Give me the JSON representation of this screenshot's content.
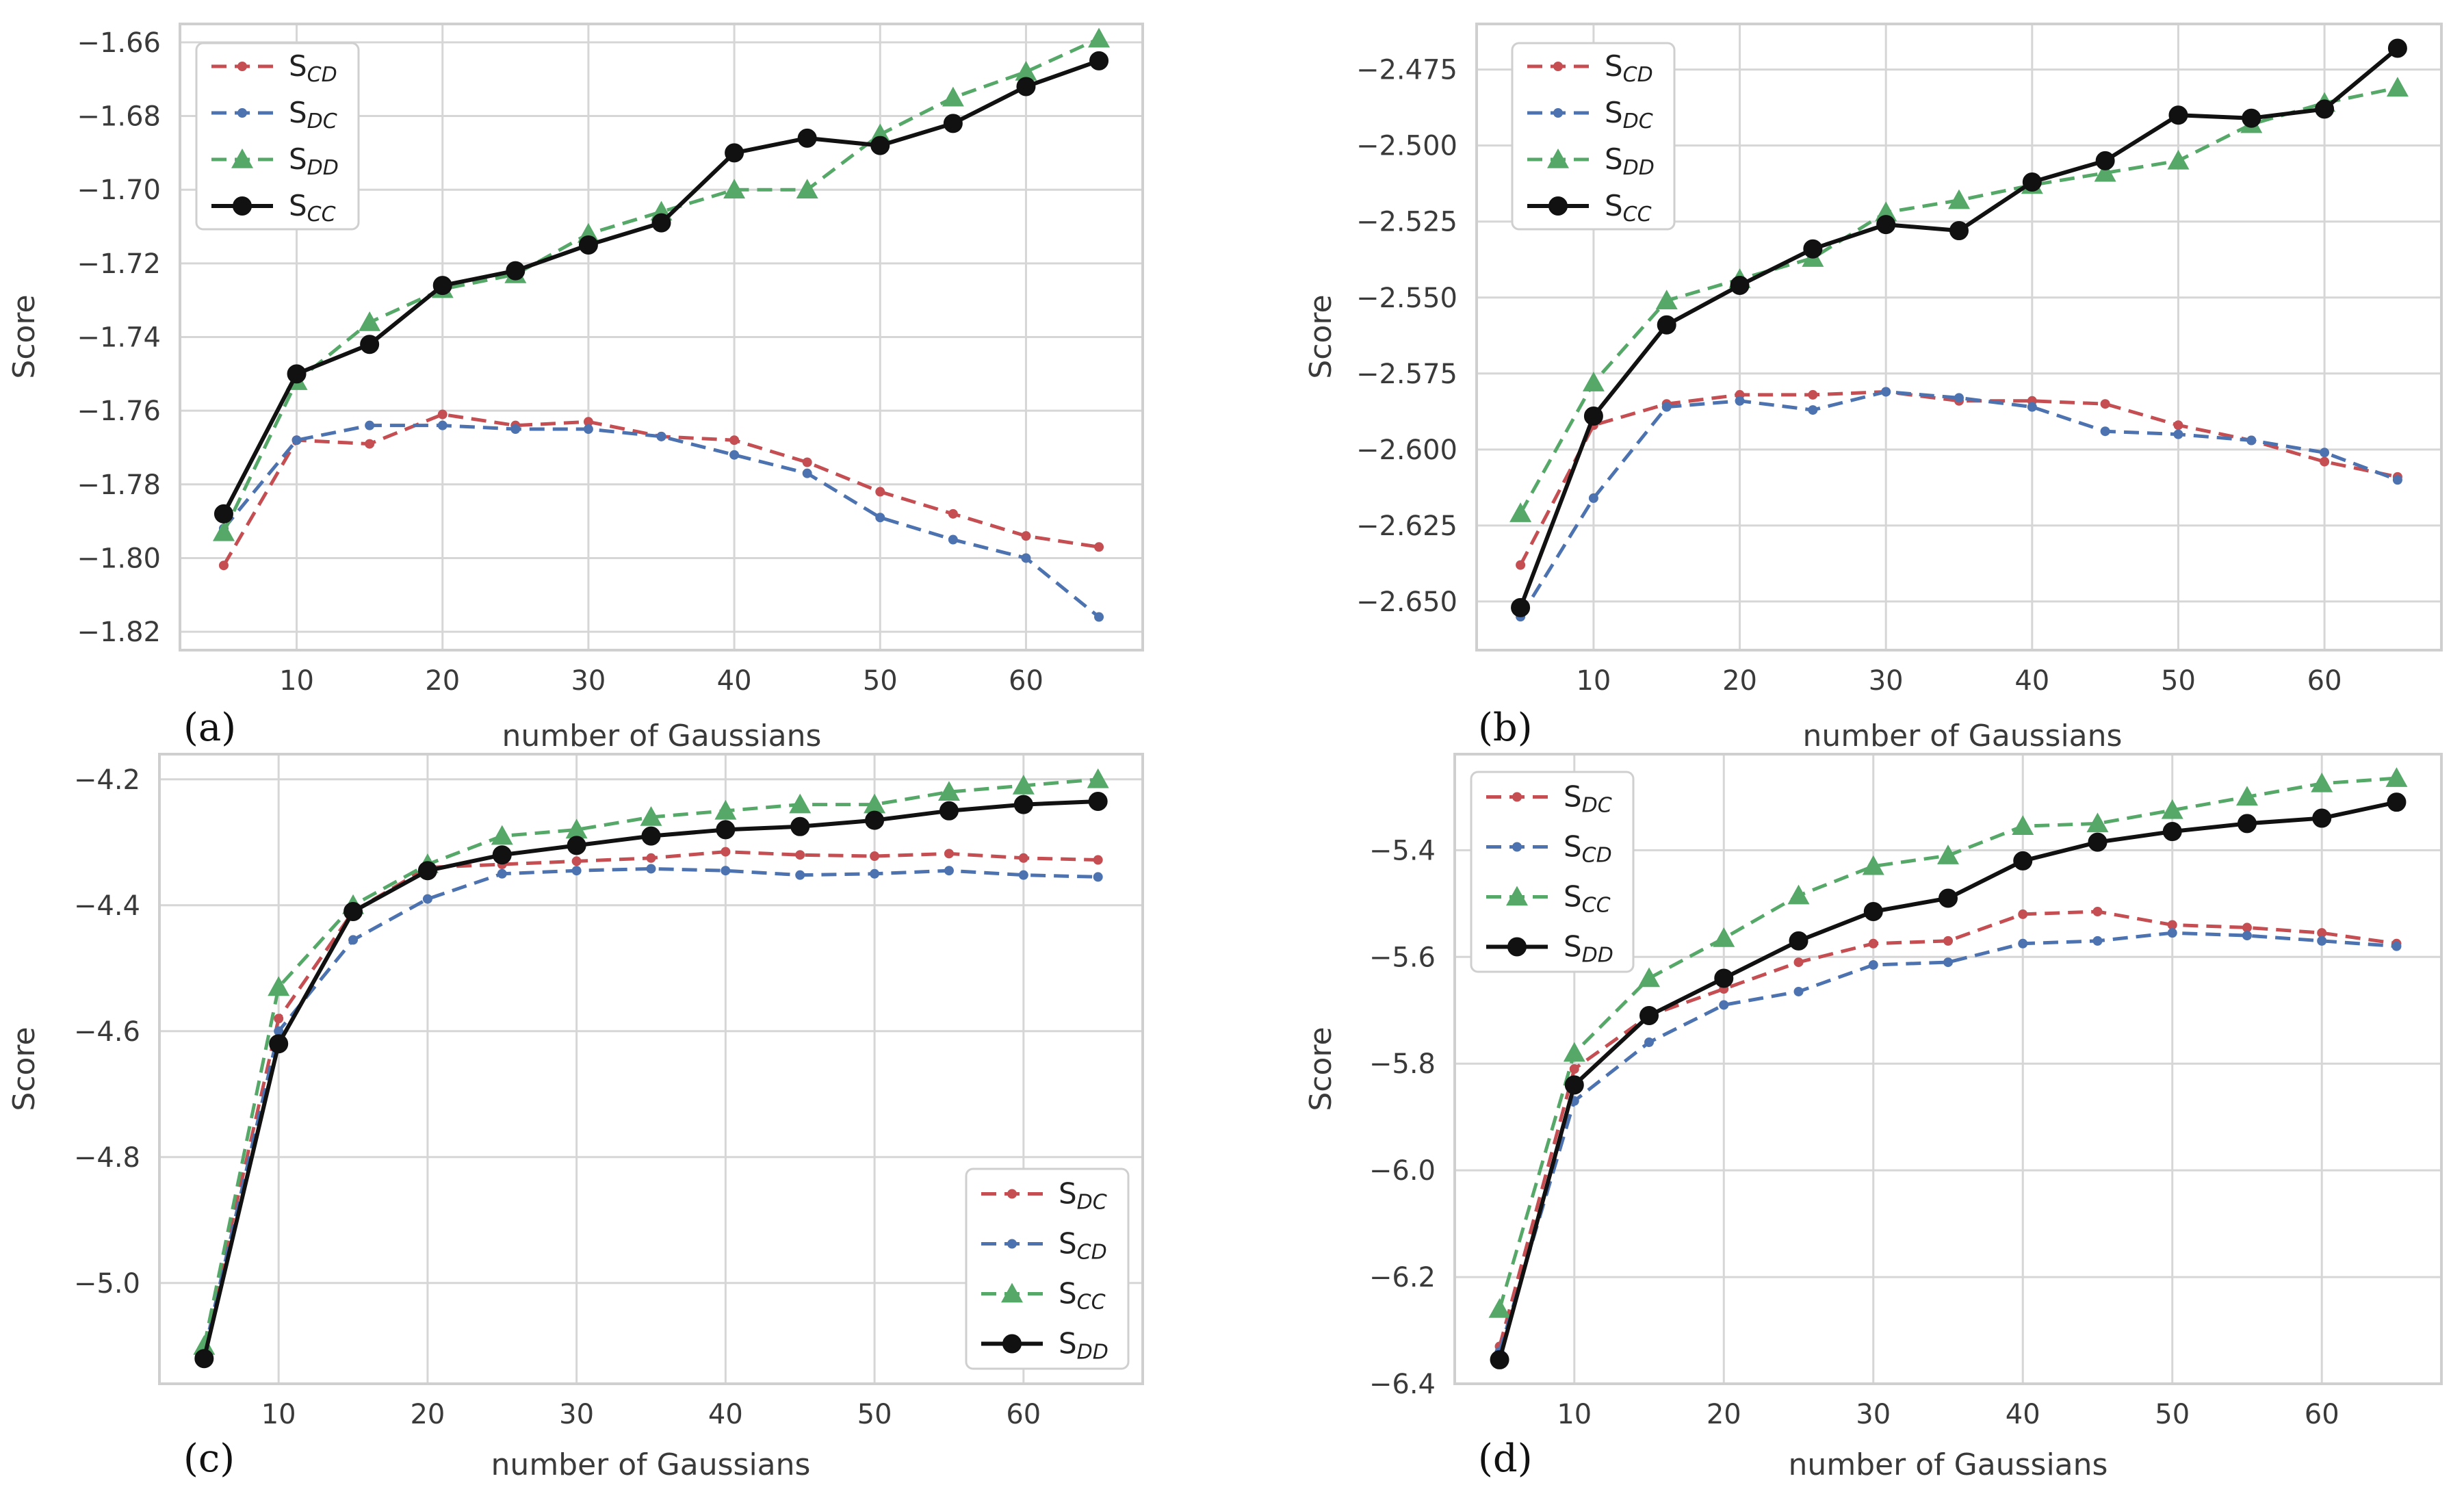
{
  "chart_data": [
    {
      "type": "line",
      "panel": "(a)",
      "xlabel": "number of Gaussians",
      "ylabel": "Score",
      "x": [
        5,
        10,
        15,
        20,
        25,
        30,
        35,
        40,
        45,
        50,
        55,
        60,
        65
      ],
      "xlim": [
        2,
        68
      ],
      "ylim": [
        -1.825,
        -1.655
      ],
      "xticks": [
        10,
        20,
        30,
        40,
        50,
        60
      ],
      "yticks": [
        -1.82,
        -1.8,
        -1.78,
        -1.76,
        -1.74,
        -1.72,
        -1.7,
        -1.68,
        -1.66
      ],
      "ytick_labels": [
        "−1.82",
        "−1.80",
        "−1.78",
        "−1.76",
        "−1.74",
        "−1.72",
        "−1.70",
        "−1.68",
        "−1.66"
      ],
      "legend_position": "top-left",
      "series": [
        {
          "base": "S",
          "sub": "CD",
          "color": "#c44e52",
          "dashed": true,
          "marker": "point",
          "values": [
            -1.802,
            -1.768,
            -1.769,
            -1.761,
            -1.764,
            -1.763,
            -1.767,
            -1.768,
            -1.774,
            -1.782,
            -1.788,
            -1.794,
            -1.797
          ]
        },
        {
          "base": "S",
          "sub": "DC",
          "color": "#4c72b0",
          "dashed": true,
          "marker": "point",
          "values": [
            -1.792,
            -1.768,
            -1.764,
            -1.764,
            -1.765,
            -1.765,
            -1.767,
            -1.772,
            -1.777,
            -1.789,
            -1.795,
            -1.8,
            -1.816
          ]
        },
        {
          "base": "S",
          "sub": "DD",
          "color": "#55a868",
          "dashed": true,
          "marker": "triangle",
          "values": [
            -1.793,
            -1.752,
            -1.736,
            -1.727,
            -1.723,
            -1.712,
            -1.706,
            -1.7,
            -1.7,
            -1.685,
            -1.675,
            -1.668,
            -1.659
          ]
        },
        {
          "base": "S",
          "sub": "CC",
          "color": "#111111",
          "dashed": false,
          "marker": "circle",
          "values": [
            -1.788,
            -1.75,
            -1.742,
            -1.726,
            -1.722,
            -1.715,
            -1.709,
            -1.69,
            -1.686,
            -1.688,
            -1.682,
            -1.672,
            -1.665
          ]
        }
      ]
    },
    {
      "type": "line",
      "panel": "(b)",
      "xlabel": "number of Gaussians",
      "ylabel": "Score",
      "x": [
        5,
        10,
        15,
        20,
        25,
        30,
        35,
        40,
        45,
        50,
        55,
        60,
        65
      ],
      "xlim": [
        2,
        68
      ],
      "ylim": [
        -2.666,
        -2.46
      ],
      "xticks": [
        10,
        20,
        30,
        40,
        50,
        60
      ],
      "yticks": [
        -2.65,
        -2.625,
        -2.6,
        -2.575,
        -2.55,
        -2.525,
        -2.5,
        -2.475
      ],
      "ytick_labels": [
        "−2.650",
        "−2.625",
        "−2.600",
        "−2.575",
        "−2.550",
        "−2.525",
        "−2.500",
        "−2.475"
      ],
      "legend_position": "top-left",
      "series": [
        {
          "base": "S",
          "sub": "CD",
          "color": "#c44e52",
          "dashed": true,
          "marker": "point",
          "values": [
            -2.638,
            -2.592,
            -2.585,
            -2.582,
            -2.582,
            -2.581,
            -2.584,
            -2.584,
            -2.585,
            -2.592,
            -2.597,
            -2.604,
            -2.609
          ]
        },
        {
          "base": "S",
          "sub": "DC",
          "color": "#4c72b0",
          "dashed": true,
          "marker": "point",
          "values": [
            -2.655,
            -2.616,
            -2.586,
            -2.584,
            -2.587,
            -2.581,
            -2.583,
            -2.586,
            -2.594,
            -2.595,
            -2.597,
            -2.601,
            -2.61
          ]
        },
        {
          "base": "S",
          "sub": "DD",
          "color": "#55a868",
          "dashed": true,
          "marker": "triangle",
          "values": [
            -2.621,
            -2.578,
            -2.551,
            -2.544,
            -2.537,
            -2.522,
            -2.518,
            -2.513,
            -2.509,
            -2.505,
            -2.493,
            -2.486,
            -2.481
          ]
        },
        {
          "base": "S",
          "sub": "CC",
          "color": "#111111",
          "dashed": false,
          "marker": "circle",
          "values": [
            -2.652,
            -2.589,
            -2.559,
            -2.546,
            -2.534,
            -2.526,
            -2.528,
            -2.512,
            -2.505,
            -2.49,
            -2.491,
            -2.488,
            -2.468
          ]
        }
      ]
    },
    {
      "type": "line",
      "panel": "(c)",
      "xlabel": "number of Gaussians",
      "ylabel": "Score",
      "x": [
        5,
        10,
        15,
        20,
        25,
        30,
        35,
        40,
        45,
        50,
        55,
        60,
        65
      ],
      "xlim": [
        2,
        68
      ],
      "ylim": [
        -5.16,
        -4.16
      ],
      "xticks": [
        10,
        20,
        30,
        40,
        50,
        60
      ],
      "yticks": [
        -5.0,
        -4.8,
        -4.6,
        -4.4,
        -4.2
      ],
      "ytick_labels": [
        "−5.0",
        "−4.8",
        "−4.6",
        "−4.4",
        "−4.2"
      ],
      "legend_position": "bottom-right",
      "series": [
        {
          "base": "S",
          "sub": "DC",
          "color": "#c44e52",
          "dashed": true,
          "marker": "point",
          "values": [
            -5.1,
            -4.58,
            -4.41,
            -4.34,
            -4.335,
            -4.33,
            -4.325,
            -4.315,
            -4.32,
            -4.322,
            -4.318,
            -4.325,
            -4.328
          ]
        },
        {
          "base": "S",
          "sub": "CD",
          "color": "#4c72b0",
          "dashed": true,
          "marker": "point",
          "values": [
            -5.11,
            -4.6,
            -4.455,
            -4.39,
            -4.35,
            -4.345,
            -4.342,
            -4.345,
            -4.352,
            -4.35,
            -4.345,
            -4.352,
            -4.355
          ]
        },
        {
          "base": "S",
          "sub": "CC",
          "color": "#55a868",
          "dashed": true,
          "marker": "triangle",
          "values": [
            -5.1,
            -4.53,
            -4.4,
            -4.335,
            -4.29,
            -4.28,
            -4.26,
            -4.25,
            -4.24,
            -4.24,
            -4.22,
            -4.21,
            -4.2
          ]
        },
        {
          "base": "S",
          "sub": "DD",
          "color": "#111111",
          "dashed": false,
          "marker": "circle",
          "values": [
            -5.12,
            -4.62,
            -4.41,
            -4.345,
            -4.32,
            -4.305,
            -4.29,
            -4.28,
            -4.275,
            -4.265,
            -4.25,
            -4.24,
            -4.235
          ]
        }
      ]
    },
    {
      "type": "line",
      "panel": "(d)",
      "xlabel": "number of Gaussians",
      "ylabel": "Score",
      "x": [
        5,
        10,
        15,
        20,
        25,
        30,
        35,
        40,
        45,
        50,
        55,
        60,
        65
      ],
      "xlim": [
        2,
        68
      ],
      "ylim": [
        -6.4,
        -5.22
      ],
      "xticks": [
        10,
        20,
        30,
        40,
        50,
        60
      ],
      "yticks": [
        -6.4,
        -6.2,
        -6.0,
        -5.8,
        -5.6,
        -5.4
      ],
      "ytick_labels": [
        "−6.4",
        "−6.2",
        "−6.0",
        "−5.8",
        "−5.6",
        "−5.4"
      ],
      "legend_position": "top-left",
      "series": [
        {
          "base": "S",
          "sub": "DC",
          "color": "#c44e52",
          "dashed": true,
          "marker": "point",
          "values": [
            -6.33,
            -5.81,
            -5.71,
            -5.66,
            -5.61,
            -5.575,
            -5.57,
            -5.52,
            -5.515,
            -5.54,
            -5.545,
            -5.555,
            -5.575
          ]
        },
        {
          "base": "S",
          "sub": "CD",
          "color": "#4c72b0",
          "dashed": true,
          "marker": "point",
          "values": [
            -6.34,
            -5.87,
            -5.76,
            -5.69,
            -5.665,
            -5.615,
            -5.61,
            -5.575,
            -5.57,
            -5.555,
            -5.56,
            -5.57,
            -5.58
          ]
        },
        {
          "base": "S",
          "sub": "CC",
          "color": "#55a868",
          "dashed": true,
          "marker": "triangle",
          "values": [
            -6.26,
            -5.78,
            -5.64,
            -5.565,
            -5.485,
            -5.43,
            -5.41,
            -5.355,
            -5.35,
            -5.325,
            -5.3,
            -5.275,
            -5.265
          ]
        },
        {
          "base": "S",
          "sub": "DD",
          "color": "#111111",
          "dashed": false,
          "marker": "circle",
          "values": [
            -6.355,
            -5.84,
            -5.71,
            -5.64,
            -5.57,
            -5.515,
            -5.49,
            -5.42,
            -5.385,
            -5.365,
            -5.35,
            -5.34,
            -5.31
          ]
        }
      ]
    }
  ]
}
